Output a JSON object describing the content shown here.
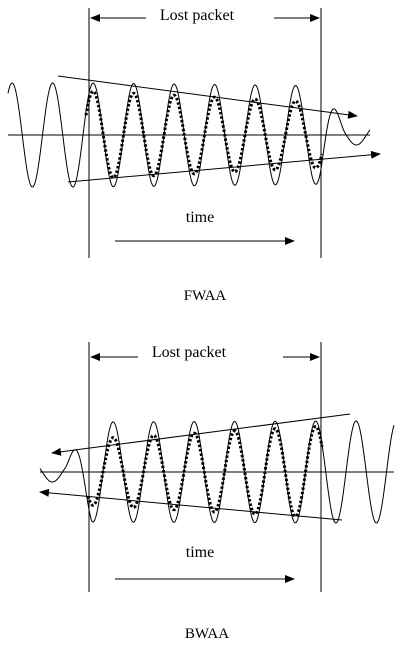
{
  "figures": [
    {
      "id": "fwaa",
      "lost_label": "Lost packet",
      "time_label": "time",
      "caption": "FWAA"
    },
    {
      "id": "bwaa",
      "lost_label": "Lost packet",
      "time_label": "time",
      "caption": "BWAA"
    }
  ]
}
